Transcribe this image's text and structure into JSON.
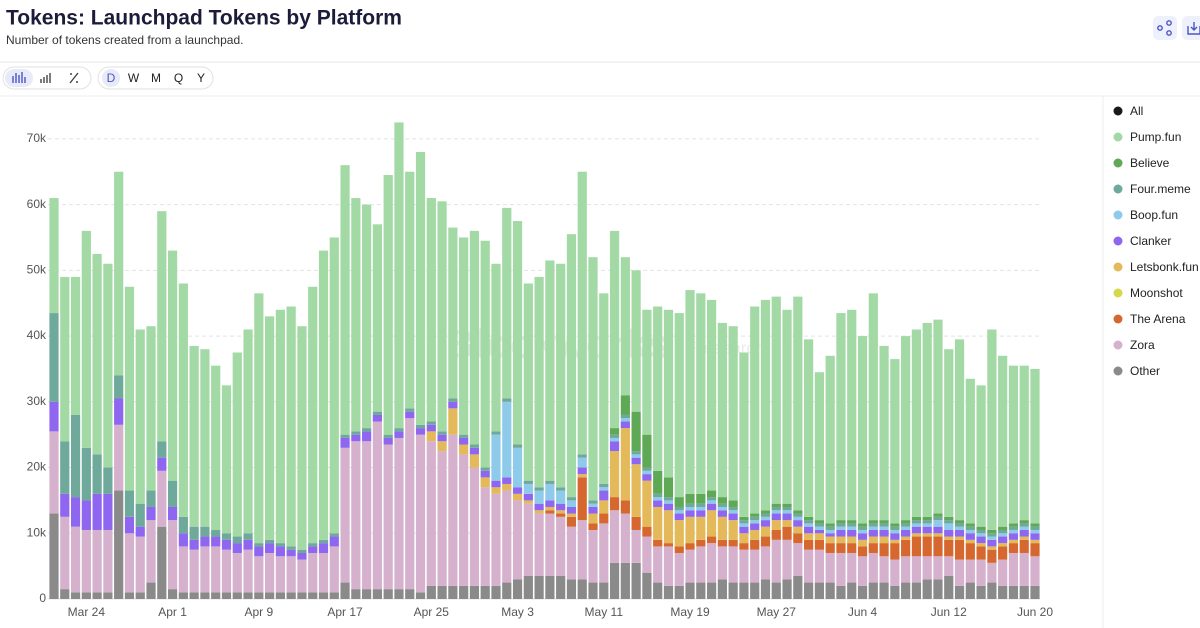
{
  "toolbar": {
    "intervals": [
      "D",
      "W",
      "M",
      "Q",
      "Y"
    ]
  },
  "chart_data": {
    "type": "stacked_bar",
    "title": "Tokens: Launchpad Tokens by Platform",
    "subtitle": "Number of tokens created from a launchpad.",
    "annotations": [
      "Blockworks",
      "Research"
    ],
    "categories": [
      null,
      null,
      null,
      "Mar 24",
      null,
      null,
      null,
      null,
      null,
      null,
      null,
      "Apr 1",
      null,
      null,
      null,
      null,
      null,
      null,
      null,
      "Apr 9",
      null,
      null,
      null,
      null,
      null,
      null,
      null,
      "Apr 17",
      null,
      null,
      null,
      null,
      null,
      null,
      null,
      "Apr 25",
      null,
      null,
      null,
      null,
      null,
      null,
      null,
      "May 3",
      null,
      null,
      null,
      null,
      null,
      null,
      null,
      "May 11",
      null,
      null,
      null,
      null,
      null,
      null,
      null,
      "May 19",
      null,
      null,
      null,
      null,
      null,
      null,
      null,
      "May 27",
      null,
      null,
      null,
      null,
      null,
      null,
      null,
      "Jun 4",
      null,
      null,
      null,
      null,
      null,
      null,
      null,
      "Jun 12",
      null,
      null,
      null,
      null,
      null,
      null,
      null,
      "Jun 20"
    ],
    "ylim": [
      0,
      75000
    ],
    "yticks": [
      0,
      {
        "value": 10000,
        "label": "10k"
      },
      {
        "value": 20000,
        "label": "20k"
      },
      {
        "value": 30000,
        "label": "30k"
      },
      {
        "value": 40000,
        "label": "40k"
      },
      {
        "value": 50000,
        "label": "50k"
      },
      {
        "value": 60000,
        "label": "60k"
      },
      {
        "value": 70000,
        "label": "70k"
      }
    ],
    "grid": true,
    "legend": "right",
    "series": [
      {
        "name": "All",
        "color": "#1a1a1a"
      },
      {
        "name": "Pump.fun",
        "color": "#a3d9a5",
        "values": [
          17500,
          25000,
          21000,
          33000,
          30500,
          31000,
          31000,
          31000,
          26500,
          25000,
          35000,
          35000,
          35500,
          27500,
          27000,
          25000,
          22500,
          28000,
          31000,
          38000,
          34000,
          35500,
          36500,
          34000,
          39000,
          44000,
          45000,
          41000,
          35500,
          34000,
          28500,
          39500,
          46500,
          36000,
          41500,
          34000,
          35000,
          26000,
          30000,
          32500,
          34500,
          25500,
          29000,
          34000,
          30000,
          32000,
          33500,
          34000,
          40000,
          43000,
          37000,
          29000,
          30000,
          21000,
          21500,
          19000,
          25000,
          25500,
          28000,
          31000,
          30500,
          29000,
          26500,
          26500,
          25000,
          31500,
          32000,
          31500,
          29500,
          32500,
          27000,
          22500,
          25500,
          31500,
          32000,
          28500,
          34500,
          26500,
          25000,
          28000,
          28500,
          29500,
          29500,
          25500,
          27500,
          22000,
          21500,
          30500,
          26000,
          24000,
          23500,
          23500
        ]
      },
      {
        "name": "Believe",
        "color": "#5fa956",
        "values": [
          0,
          0,
          0,
          0,
          0,
          0,
          0,
          0,
          0,
          0,
          0,
          0,
          0,
          0,
          0,
          0,
          0,
          0,
          0,
          0,
          0,
          0,
          0,
          0,
          0,
          0,
          0,
          0,
          0,
          0,
          0,
          0,
          0,
          0,
          0,
          0,
          0,
          0,
          0,
          0,
          0,
          0,
          0,
          0,
          0,
          0,
          0,
          0,
          0,
          0,
          0,
          0,
          1000,
          3000,
          6000,
          5000,
          3500,
          3000,
          1500,
          1500,
          1500,
          1000,
          1000,
          1000,
          500,
          500,
          500,
          500,
          500,
          500,
          500,
          500,
          500,
          500,
          500,
          500,
          500,
          500,
          500,
          500,
          500,
          500,
          500,
          500,
          500,
          500,
          500,
          500,
          500,
          500,
          500,
          500
        ]
      },
      {
        "name": "Four.meme",
        "color": "#6fa99b",
        "values": [
          13500,
          8000,
          12500,
          8000,
          6000,
          4000,
          3500,
          4000,
          3500,
          2500,
          2500,
          4000,
          2500,
          2000,
          1500,
          1000,
          1000,
          1000,
          1000,
          500,
          500,
          500,
          500,
          500,
          500,
          500,
          500,
          500,
          500,
          500,
          500,
          500,
          500,
          500,
          500,
          500,
          500,
          500,
          500,
          500,
          500,
          500,
          500,
          500,
          500,
          500,
          500,
          500,
          500,
          500,
          500,
          500,
          500,
          500,
          500,
          500,
          500,
          500,
          500,
          500,
          500,
          500,
          500,
          500,
          500,
          500,
          500,
          500,
          500,
          500,
          500,
          500,
          500,
          500,
          500,
          500,
          500,
          500,
          500,
          500,
          500,
          500,
          500,
          500,
          500,
          500,
          500,
          500,
          500,
          500,
          500,
          500
        ]
      },
      {
        "name": "Boop.fun",
        "color": "#8ecbeb",
        "values": [
          0,
          0,
          0,
          0,
          0,
          0,
          0,
          0,
          0,
          0,
          0,
          0,
          0,
          0,
          0,
          0,
          0,
          0,
          0,
          0,
          0,
          0,
          0,
          0,
          0,
          0,
          0,
          0,
          0,
          0,
          0,
          0,
          0,
          0,
          0,
          0,
          0,
          0,
          0,
          0,
          0,
          7000,
          11500,
          6000,
          1500,
          2000,
          2500,
          2000,
          1000,
          1500,
          500,
          500,
          500,
          500,
          500,
          500,
          500,
          500,
          500,
          500,
          500,
          500,
          500,
          500,
          500,
          500,
          500,
          500,
          500,
          500,
          500,
          500,
          500,
          500,
          500,
          500,
          500,
          500,
          500,
          500,
          500,
          500,
          1000,
          1000,
          500,
          500,
          500,
          500,
          500,
          500,
          500,
          500
        ]
      },
      {
        "name": "Clanker",
        "color": "#8f66f0",
        "values": [
          4500,
          3500,
          4500,
          4500,
          5500,
          5500,
          4000,
          2500,
          1500,
          2000,
          2000,
          2000,
          2000,
          1500,
          1500,
          1500,
          1500,
          1500,
          1500,
          1500,
          1500,
          1500,
          1000,
          1000,
          1000,
          1500,
          1500,
          1500,
          1000,
          1500,
          1000,
          1000,
          1000,
          1000,
          1000,
          1000,
          1000,
          1000,
          1000,
          1000,
          1000,
          1000,
          1000,
          1000,
          1000,
          1000,
          1000,
          1000,
          1000,
          1000,
          1000,
          1500,
          1500,
          1000,
          1000,
          1000,
          1000,
          1000,
          1000,
          1000,
          1000,
          1000,
          1000,
          1000,
          1000,
          1000,
          1000,
          1000,
          1000,
          1000,
          1000,
          500,
          500,
          1000,
          1000,
          1000,
          1000,
          1000,
          1000,
          1000,
          1000,
          1000,
          1000,
          1000,
          1000,
          1000,
          1000,
          1000,
          1000,
          1000,
          1000,
          1000
        ]
      },
      {
        "name": "Letsbonk.fun",
        "color": "#e3b95a",
        "values": [
          0,
          0,
          0,
          0,
          0,
          0,
          0,
          0,
          0,
          0,
          0,
          0,
          0,
          0,
          0,
          0,
          0,
          0,
          0,
          0,
          0,
          0,
          0,
          0,
          0,
          0,
          0,
          0,
          0,
          0,
          0,
          0,
          0,
          0,
          0,
          1500,
          1500,
          4000,
          1500,
          2000,
          1500,
          1000,
          1000,
          1000,
          500,
          500,
          500,
          500,
          500,
          500,
          1500,
          2000,
          7000,
          11000,
          8000,
          7000,
          5000,
          5000,
          4000,
          4000,
          3500,
          4000,
          3500,
          3000,
          1500,
          1500,
          1500,
          1500,
          1000,
          1000,
          1000,
          1000,
          1000,
          1000,
          1000,
          1000,
          1000,
          1000,
          500,
          500,
          500,
          500,
          500,
          500,
          500,
          500,
          500,
          500,
          500,
          500,
          500,
          500
        ]
      },
      {
        "name": "Moonshot",
        "color": "#d6d84c",
        "values": [
          0,
          0,
          0,
          0,
          0,
          0,
          0,
          0,
          0,
          0,
          0,
          0,
          0,
          0,
          0,
          0,
          0,
          0,
          0,
          0,
          0,
          0,
          0,
          0,
          0,
          0,
          0,
          0,
          0,
          0,
          0,
          0,
          0,
          0,
          0,
          0,
          0,
          0,
          0,
          0,
          0,
          0,
          0,
          0,
          0,
          0,
          0,
          0,
          0,
          0,
          0,
          0,
          0,
          0,
          0,
          0,
          0,
          0,
          0,
          0,
          0,
          0,
          0,
          0,
          0,
          0,
          0,
          0,
          0,
          0,
          0,
          0,
          0,
          0,
          0,
          0,
          0,
          0,
          0,
          0,
          0,
          0,
          0,
          0,
          0,
          0,
          0,
          0,
          0,
          0,
          0,
          0
        ]
      },
      {
        "name": "The Arena",
        "color": "#d6682f",
        "values": [
          0,
          0,
          0,
          0,
          0,
          0,
          0,
          0,
          0,
          0,
          0,
          0,
          0,
          0,
          0,
          0,
          0,
          0,
          0,
          0,
          0,
          0,
          0,
          0,
          0,
          0,
          0,
          0,
          0,
          0,
          0,
          0,
          0,
          0,
          0,
          0,
          0,
          0,
          0,
          0,
          0,
          0,
          0,
          0,
          0,
          0,
          500,
          500,
          1500,
          6500,
          1000,
          1500,
          2000,
          2000,
          2000,
          1500,
          1000,
          500,
          1000,
          1000,
          1000,
          1000,
          1000,
          1000,
          1000,
          1500,
          1500,
          1500,
          2000,
          1500,
          1500,
          1500,
          1500,
          1500,
          1500,
          1500,
          1500,
          2000,
          2500,
          2500,
          3000,
          3000,
          3000,
          2500,
          3000,
          2500,
          2000,
          2000,
          2000,
          1500,
          2000,
          2000
        ]
      },
      {
        "name": "Zora",
        "color": "#d6b1cd",
        "values": [
          12500,
          11000,
          10000,
          9500,
          9500,
          9500,
          10000,
          9000,
          8500,
          9500,
          8500,
          10500,
          7000,
          6500,
          7000,
          7000,
          6500,
          6000,
          6500,
          5500,
          6000,
          5500,
          5500,
          5000,
          6000,
          6000,
          7000,
          20500,
          22500,
          22500,
          25500,
          22000,
          23000,
          26000,
          24000,
          22000,
          20500,
          23000,
          20000,
          18000,
          15000,
          14000,
          14000,
          12000,
          11000,
          9500,
          9500,
          9000,
          8000,
          9000,
          8000,
          9000,
          8000,
          7500,
          5000,
          5500,
          5500,
          6000,
          5000,
          5000,
          5500,
          6000,
          5000,
          5500,
          5000,
          5000,
          5000,
          6500,
          6000,
          5000,
          5000,
          5000,
          4500,
          5000,
          4500,
          4500,
          4500,
          4000,
          4000,
          4000,
          4000,
          3500,
          3500,
          3000,
          4000,
          3500,
          4000,
          3000,
          4000,
          5000,
          5000,
          4500
        ]
      },
      {
        "name": "Other",
        "color": "#8a8a8a",
        "values": [
          13000,
          1500,
          1000,
          1000,
          1000,
          1000,
          16500,
          1000,
          1000,
          2500,
          11000,
          1500,
          1000,
          1000,
          1000,
          1000,
          1000,
          1000,
          1000,
          1000,
          1000,
          1000,
          1000,
          1000,
          1000,
          1000,
          1000,
          2500,
          1500,
          1500,
          1500,
          1500,
          1500,
          1500,
          1000,
          2000,
          2000,
          2000,
          2000,
          2000,
          2000,
          2000,
          2500,
          3000,
          3500,
          3500,
          3500,
          3500,
          3000,
          3000,
          2500,
          2500,
          5500,
          5500,
          5500,
          4000,
          2500,
          2000,
          2000,
          2500,
          2500,
          2500,
          3000,
          2500,
          2500,
          2500,
          3000,
          2500,
          3000,
          3500,
          2500,
          2500,
          2500,
          2000,
          2500,
          2000,
          2500,
          2500,
          2000,
          2500,
          2500,
          3000,
          3000,
          3500,
          2000,
          2500,
          2000,
          2500,
          2000,
          2000,
          2000,
          2000
        ]
      }
    ]
  }
}
